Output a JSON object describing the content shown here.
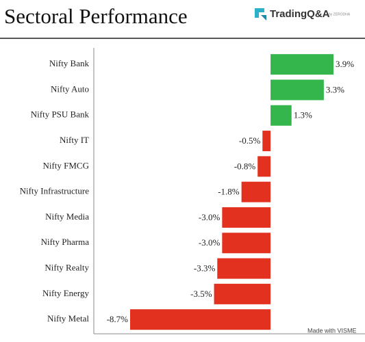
{
  "chart_data": {
    "type": "hbar",
    "title": "Sectoral Performance",
    "logo": "TradingQ&A",
    "logo_sub": "by ZERODHA",
    "source": "Made with VISME",
    "categories": [
      "Nifty Bank",
      "Nifty Auto",
      "Nifty PSU Bank",
      "Nifty IT",
      "Nifty FMCG",
      "Nifty Infrastructure",
      "Nifty Media",
      "Nifty Pharma",
      "Nifty Realty",
      "Nifty Energy",
      "Nifty Metal"
    ],
    "values": [
      3.9,
      3.3,
      1.3,
      -0.5,
      -0.8,
      -1.8,
      -3.0,
      -3.0,
      -3.3,
      -3.5,
      -8.7
    ],
    "value_labels": [
      "3.9%",
      "3.3%",
      "1.3%",
      "-0.5%",
      "-0.8%",
      "-1.8%",
      "-3.0%",
      "-3.0%",
      "-3.3%",
      "-3.5%",
      "-8.7%"
    ],
    "positive_color": "#34b64d",
    "negative_color": "#e2321f"
  }
}
